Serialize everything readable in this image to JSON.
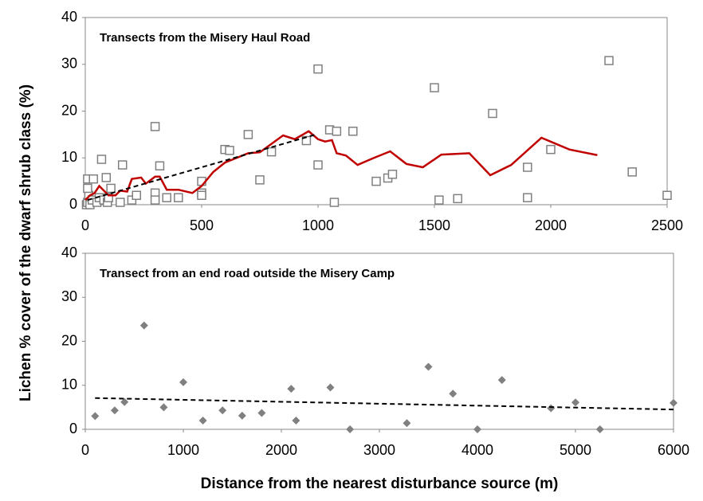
{
  "ylabel": "Lichen % cover of the dwarf shrub class (%)",
  "xlabel": "Distance from the nearest disturbance source (m)",
  "chart_data": [
    {
      "type": "scatter",
      "annotation": "Transects from the Misery Haul Road",
      "xlim": [
        0,
        2500
      ],
      "xticks": [
        0,
        500,
        1000,
        1500,
        2000,
        2500
      ],
      "ylim": [
        0,
        40
      ],
      "yticks": [
        0,
        10,
        20,
        30,
        40
      ],
      "series": [
        {
          "style": "square",
          "color": "#808080",
          "x": [
            5,
            10,
            15,
            10,
            10,
            20,
            30,
            35,
            50,
            60,
            70,
            80,
            90,
            95,
            100,
            110,
            150,
            160,
            200,
            220,
            300,
            300,
            300,
            320,
            350,
            400,
            500,
            500,
            500,
            600,
            620,
            700,
            750,
            800,
            950,
            1000,
            1000,
            1050,
            1070,
            1080,
            1150,
            1250,
            1300,
            1320,
            1500,
            1520,
            1600,
            1750,
            1900,
            1900,
            2000,
            2250,
            2350,
            2500
          ],
          "values": [
            0,
            0.5,
            2,
            3.5,
            5.5,
            0,
            1,
            5.5,
            0.5,
            1.5,
            9.7,
            1,
            5.8,
            0.5,
            1.5,
            3.5,
            0.5,
            8.5,
            1,
            2,
            16.7,
            2.5,
            1,
            8.3,
            1.5,
            1.5,
            5,
            2.5,
            2,
            11.8,
            11.6,
            15,
            5.3,
            11.3,
            13.7,
            29,
            8.5,
            16,
            0.5,
            15.7,
            15.7,
            5,
            5.7,
            6.5,
            25,
            1,
            1.3,
            19.5,
            1.5,
            8,
            11.8,
            30.8,
            7,
            2
          ]
        },
        {
          "style": "line",
          "color": "#c00000",
          "x": [
            0,
            20,
            40,
            60,
            80,
            100,
            130,
            150,
            180,
            200,
            240,
            260,
            300,
            320,
            350,
            400,
            460,
            500,
            550,
            600,
            650,
            700,
            750,
            800,
            850,
            900,
            960,
            1000,
            1030,
            1060,
            1080,
            1120,
            1170,
            1240,
            1310,
            1380,
            1450,
            1530,
            1650,
            1740,
            1830,
            1960,
            2080,
            2200
          ],
          "values": [
            1,
            2,
            2.5,
            4,
            3,
            2,
            2,
            3,
            2.8,
            5.5,
            5.8,
            4.5,
            6,
            6,
            3.2,
            3.2,
            2.5,
            4,
            7,
            9,
            10,
            11,
            11.2,
            13,
            14.8,
            14,
            15.7,
            14,
            13.5,
            13.8,
            11,
            10.5,
            8.5,
            10,
            11.4,
            8.7,
            8,
            10.7,
            11,
            6.3,
            8.5,
            14.3,
            11.8,
            10.6
          ]
        },
        {
          "style": "dashed",
          "color": "#000000",
          "x": [
            10,
            990
          ],
          "values": [
            1,
            15
          ]
        }
      ]
    },
    {
      "type": "scatter",
      "annotation": "Transect from an end road outside the Misery Camp",
      "xlim": [
        0,
        6000
      ],
      "xticks": [
        0,
        1000,
        2000,
        3000,
        4000,
        5000,
        6000
      ],
      "ylim": [
        0,
        40
      ],
      "yticks": [
        0,
        10,
        20,
        30,
        40
      ],
      "series": [
        {
          "style": "diamond",
          "color": "#808080",
          "x": [
            100,
            300,
            400,
            600,
            800,
            1000,
            1200,
            1400,
            1600,
            1800,
            2100,
            2150,
            2500,
            2700,
            3280,
            3500,
            3750,
            4000,
            4250,
            4750,
            5000,
            5250,
            6000
          ],
          "values": [
            3,
            4.3,
            6.2,
            23.6,
            5,
            10.7,
            2,
            4.3,
            3.1,
            3.7,
            9.2,
            2,
            9.5,
            0,
            1.4,
            14.2,
            8.1,
            0,
            11.2,
            4.8,
            6.1,
            0,
            6
          ]
        },
        {
          "style": "dashed",
          "color": "#000000",
          "x": [
            100,
            6000
          ],
          "values": [
            7.1,
            4.5
          ]
        }
      ]
    }
  ]
}
